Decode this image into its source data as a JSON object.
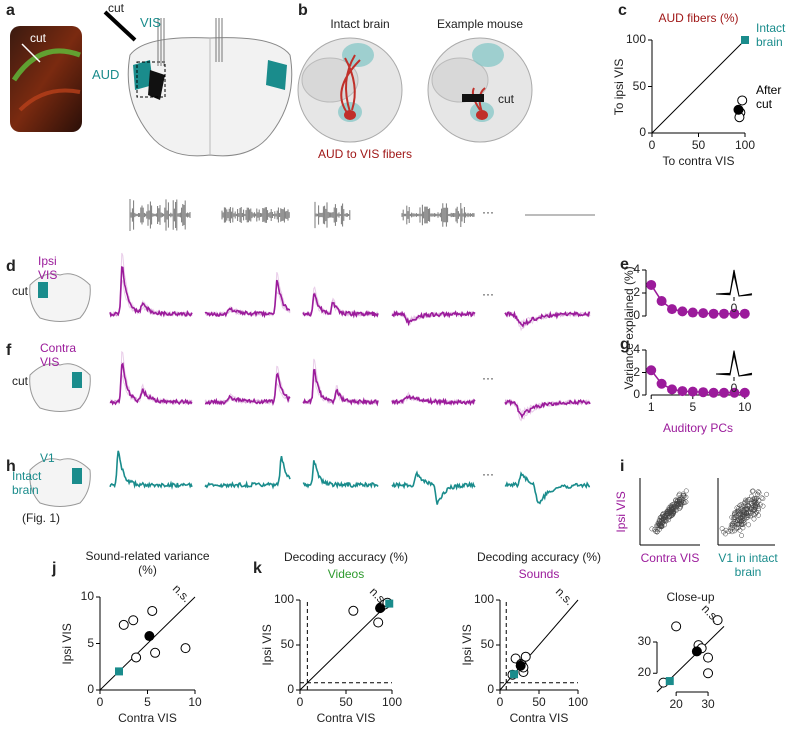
{
  "panel_letters": [
    "a",
    "b",
    "c",
    "d",
    "e",
    "f",
    "g",
    "h",
    "i",
    "j",
    "k"
  ],
  "panel_a": {
    "photo_cut": "cut",
    "cut": "cut",
    "vis": "VIS",
    "aud": "AUD"
  },
  "panel_b": {
    "intact": "Intact brain",
    "example": "Example mouse",
    "cut": "cut",
    "fibers": "AUD to VIS fibers"
  },
  "rows": [
    {
      "region": "Ipsi VIS",
      "cut": "cut"
    },
    {
      "region": "Contra VIS",
      "cut": "cut"
    },
    {
      "region": "V1",
      "note": "Intact brain",
      "ref": "(Fig. 1)"
    }
  ],
  "ellipsis": "···",
  "panel_i": {
    "y_label": "Ipsi VIS",
    "x_labels": [
      "Contra VIS",
      "V1 in intact brain"
    ]
  },
  "chart_data": [
    {
      "type": "scatter",
      "title": "AUD fibers (%)",
      "title_color": "#a01818",
      "x_label": "To contra VIS",
      "y_label": "To ipsi VIS",
      "xlim": [
        0,
        100
      ],
      "ylim": [
        0,
        100
      ],
      "xticks": [
        0,
        50,
        100
      ],
      "yticks": [
        0,
        50,
        100
      ],
      "identity_line": true,
      "series": [
        {
          "name": "Intact brain",
          "color": "#1a8c8c",
          "marker": "square",
          "x": [
            100
          ],
          "values": [
            100
          ]
        },
        {
          "name": "After cut",
          "color": "#000000",
          "marker": "open",
          "x": [
            97,
            95,
            94
          ],
          "values": [
            35,
            22,
            17
          ]
        },
        {
          "color": "#000000",
          "marker": "filled",
          "x": [
            93
          ],
          "values": [
            25
          ]
        }
      ]
    },
    {
      "type": "scatter",
      "xlim": [
        0.5,
        10.5
      ],
      "ylim": [
        0,
        4
      ],
      "yticks": [
        0,
        2,
        4
      ],
      "inset_xticks": [
        0
      ],
      "series": [
        {
          "color": "#9b1b9b",
          "marker": "filled",
          "line": true,
          "x": [
            1,
            2,
            3,
            4,
            5,
            6,
            7,
            8,
            9,
            10
          ],
          "values": [
            2.7,
            1.3,
            0.6,
            0.4,
            0.3,
            0.25,
            0.2,
            0.2,
            0.2,
            0.2
          ]
        }
      ]
    },
    {
      "type": "scatter",
      "x_label": "Auditory PCs",
      "x_label_color": "#9b1b9b",
      "y_label": "Variance explained (%)",
      "xlim": [
        0.5,
        10.5
      ],
      "ylim": [
        0,
        4
      ],
      "xticks": [
        1,
        5,
        10
      ],
      "yticks": [
        0,
        2,
        4
      ],
      "inset_xticks": [
        0
      ],
      "series": [
        {
          "color": "#9b1b9b",
          "marker": "filled",
          "line": true,
          "x": [
            1,
            2,
            3,
            4,
            5,
            6,
            7,
            8,
            9,
            10
          ],
          "values": [
            2.2,
            1.0,
            0.5,
            0.35,
            0.3,
            0.25,
            0.2,
            0.2,
            0.2,
            0.2
          ]
        }
      ]
    },
    {
      "type": "scatter",
      "title": "Sound-related variance (%)",
      "x_label": "Contra VIS",
      "y_label": "Ipsi VIS",
      "annotation": "n.s.",
      "xlim": [
        0,
        10
      ],
      "ylim": [
        0,
        10
      ],
      "xticks": [
        0,
        5,
        10
      ],
      "yticks": [
        0,
        5,
        10
      ],
      "identity_line": true,
      "series": [
        {
          "color": "#000000",
          "marker": "open",
          "x": [
            2.5,
            3.5,
            5.5,
            3.8,
            5.8,
            9
          ],
          "values": [
            7,
            7.5,
            8.5,
            3.5,
            4,
            4.5
          ]
        },
        {
          "color": "#000000",
          "marker": "filled",
          "x": [
            5.2
          ],
          "values": [
            5.8
          ]
        },
        {
          "color": "#1a8c8c",
          "marker": "square",
          "x": [
            2
          ],
          "values": [
            2
          ]
        }
      ]
    },
    {
      "type": "scatter",
      "title": "Decoding accuracy (%)",
      "subtitle": "Videos",
      "subtitle_color": "#2e9a2e",
      "x_label": "Contra VIS",
      "y_label": "Ipsi VIS",
      "annotation": "n.s.",
      "xlim": [
        0,
        100
      ],
      "ylim": [
        0,
        100
      ],
      "xticks": [
        0,
        50,
        100
      ],
      "yticks": [
        0,
        50,
        100
      ],
      "identity_line": true,
      "chance": 8,
      "series": [
        {
          "color": "#000000",
          "marker": "open",
          "x": [
            58,
            85,
            88,
            92,
            95
          ],
          "values": [
            88,
            75,
            92,
            95,
            97
          ]
        },
        {
          "color": "#000000",
          "marker": "filled",
          "x": [
            87
          ],
          "values": [
            91
          ]
        },
        {
          "color": "#1a8c8c",
          "marker": "square",
          "x": [
            97
          ],
          "values": [
            96
          ]
        }
      ]
    },
    {
      "type": "scatter",
      "title": "Decoding accuracy (%)",
      "subtitle": "Sounds",
      "subtitle_color": "#9b1b9b",
      "x_label": "Contra VIS",
      "y_label": "Ipsi VIS",
      "annotation": "n.s.",
      "xlim": [
        0,
        100
      ],
      "ylim": [
        0,
        100
      ],
      "xticks": [
        0,
        50,
        100
      ],
      "yticks": [
        0,
        50,
        100
      ],
      "identity_line": true,
      "chance": 8,
      "series": [
        {
          "color": "#000000",
          "marker": "open",
          "x": [
            20,
            27,
            28,
            30,
            30,
            33,
            16
          ],
          "values": [
            35,
            29,
            28,
            20,
            25,
            37,
            17
          ]
        },
        {
          "color": "#000000",
          "marker": "filled",
          "x": [
            26.5
          ],
          "values": [
            27
          ]
        },
        {
          "color": "#1a8c8c",
          "marker": "square",
          "x": [
            18
          ],
          "values": [
            17.5
          ]
        }
      ]
    },
    {
      "type": "scatter",
      "title": "Close-up",
      "annotation": "n.s.",
      "xlim": [
        14,
        35
      ],
      "ylim": [
        14,
        38
      ],
      "xticks": [
        20,
        30
      ],
      "yticks": [
        20,
        30
      ],
      "identity_line": true,
      "series": [
        {
          "color": "#000000",
          "marker": "open",
          "x": [
            20,
            27,
            28,
            30,
            30,
            33,
            16
          ],
          "values": [
            35,
            29,
            28,
            20,
            25,
            37,
            17
          ]
        },
        {
          "color": "#000000",
          "marker": "filled",
          "x": [
            26.5
          ],
          "values": [
            27
          ]
        },
        {
          "color": "#1a8c8c",
          "marker": "square",
          "x": [
            18
          ],
          "values": [
            17.5
          ]
        }
      ]
    }
  ]
}
